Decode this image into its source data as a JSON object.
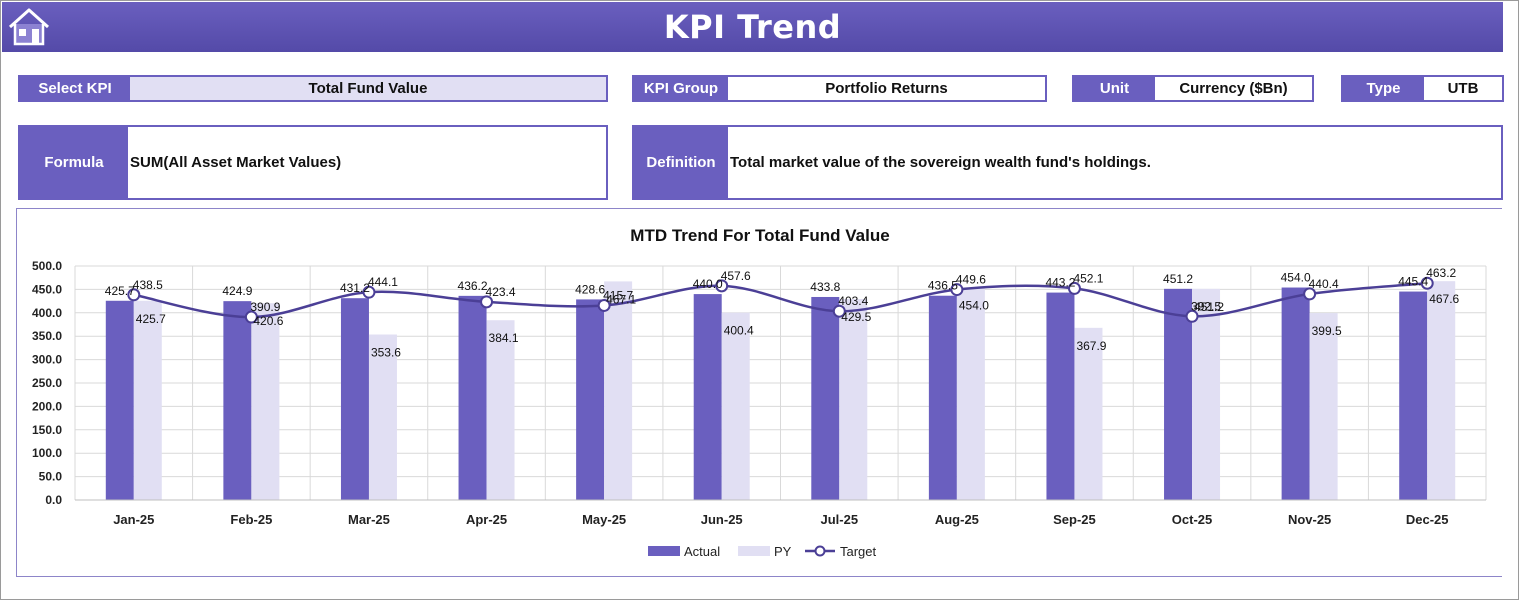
{
  "header": {
    "title": "KPI Trend",
    "home_icon": "home-icon"
  },
  "filters": {
    "select_kpi": {
      "label": "Select KPI",
      "value": "Total Fund Value"
    },
    "kpi_group": {
      "label": "KPI Group",
      "value": "Portfolio Returns"
    },
    "unit": {
      "label": "Unit",
      "value": "Currency ($Bn)"
    },
    "type": {
      "label": "Type",
      "value": "UTB"
    }
  },
  "info": {
    "formula": {
      "label": "Formula",
      "value": "SUM(All Asset Market Values)"
    },
    "definition": {
      "label": "Definition",
      "value": "Total market value of the sovereign wealth fund's holdings."
    }
  },
  "colors": {
    "accent": "#6a5fbf",
    "pale": "#e1dff3",
    "target_line": "#4b3f96"
  },
  "chart_data": {
    "type": "bar",
    "title": "MTD Trend For Total Fund Value",
    "categories": [
      "Jan-25",
      "Feb-25",
      "Mar-25",
      "Apr-25",
      "May-25",
      "Jun-25",
      "Jul-25",
      "Aug-25",
      "Sep-25",
      "Oct-25",
      "Nov-25",
      "Dec-25"
    ],
    "series": [
      {
        "name": "Actual",
        "kind": "bar",
        "color": "#6a5fbf",
        "values": [
          425.7,
          424.9,
          431.2,
          436.2,
          428.6,
          440.0,
          433.8,
          436.5,
          443.2,
          451.2,
          454.0,
          445.4
        ],
        "labels": [
          "425.7",
          "424.9",
          "431.2",
          "436.2",
          "428.6",
          "440.0",
          "433.8",
          "436.5",
          "443.2",
          "451.2",
          "454.0",
          "445.4"
        ]
      },
      {
        "name": "PY",
        "kind": "bar",
        "color": "#e1dff3",
        "values": [
          425.7,
          420.6,
          353.6,
          384.1,
          467.1,
          400.4,
          429.5,
          454.0,
          367.9,
          451.2,
          399.5,
          467.6
        ],
        "labels": [
          "425.7",
          "420.6",
          "353.6",
          "384.1",
          "467.1",
          "400.4",
          "429.5",
          "454.0",
          "367.9",
          "451.2",
          "399.5",
          "467.6"
        ]
      },
      {
        "name": "Target",
        "kind": "line",
        "color": "#4b3f96",
        "values": [
          438.5,
          390.9,
          444.1,
          423.4,
          415.7,
          457.6,
          403.4,
          449.6,
          452.1,
          392.5,
          440.4,
          463.2
        ],
        "labels": [
          "438.5",
          "390.9",
          "444.1",
          "423.4",
          "415.7",
          "457.6",
          "403.4",
          "449.6",
          "452.1",
          "392.5",
          "440.4",
          "463.2"
        ]
      }
    ],
    "yticks": [
      "0.0",
      "50.0",
      "100.0",
      "150.0",
      "200.0",
      "250.0",
      "300.0",
      "350.0",
      "400.0",
      "450.0",
      "500.0"
    ],
    "ylim": [
      0,
      500
    ],
    "grid": true,
    "legend": "bottom"
  }
}
